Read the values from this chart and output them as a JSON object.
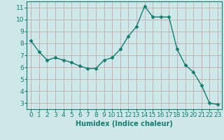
{
  "x": [
    0,
    1,
    2,
    3,
    4,
    5,
    6,
    7,
    8,
    9,
    10,
    11,
    12,
    13,
    14,
    15,
    16,
    17,
    18,
    19,
    20,
    21,
    22,
    23
  ],
  "y": [
    8.2,
    7.3,
    6.6,
    6.8,
    6.6,
    6.4,
    6.1,
    5.9,
    5.9,
    6.6,
    6.8,
    7.5,
    8.6,
    9.4,
    11.1,
    10.2,
    10.2,
    10.2,
    7.5,
    6.2,
    5.6,
    4.5,
    3.0,
    2.9
  ],
  "xlabel": "Humidex (Indice chaleur)",
  "ylim": [
    2.5,
    11.5
  ],
  "xlim": [
    -0.5,
    23.5
  ],
  "yticks": [
    3,
    4,
    5,
    6,
    7,
    8,
    9,
    10,
    11
  ],
  "xticks": [
    0,
    1,
    2,
    3,
    4,
    5,
    6,
    7,
    8,
    9,
    10,
    11,
    12,
    13,
    14,
    15,
    16,
    17,
    18,
    19,
    20,
    21,
    22,
    23
  ],
  "line_color": "#1a7a6e",
  "marker": "D",
  "marker_size": 2.5,
  "bg_color": "#cce8e8",
  "grid_color": "#c0a0a0",
  "axis_color": "#1a7a6e",
  "label_fontsize": 7,
  "tick_fontsize": 6.5
}
